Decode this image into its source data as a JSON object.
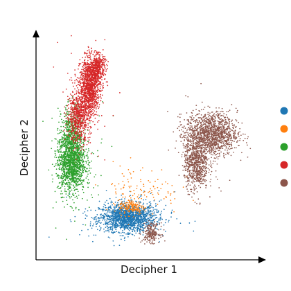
{
  "chart_data": {
    "type": "scatter",
    "title": "",
    "xlabel": "Decipher 1",
    "ylabel": "Decipher 2",
    "xlim": [
      0,
      100
    ],
    "ylim": [
      0,
      100
    ],
    "ticks": "none",
    "grid": false,
    "legend": {
      "placement": "right",
      "labels_visible": false
    },
    "series": [
      {
        "color": "#1f77b4",
        "clusters": [
          {
            "cx": 40,
            "cy": 18,
            "sx": 6.5,
            "sy": 3.2,
            "n": 1500
          },
          {
            "cx": 40,
            "cy": 18,
            "sx": 11,
            "sy": 6,
            "n": 140
          }
        ]
      },
      {
        "color": "#ff7f0e",
        "clusters": [
          {
            "cx": 42,
            "cy": 23,
            "sx": 3,
            "sy": 1.8,
            "n": 160
          },
          {
            "cx": 46,
            "cy": 31,
            "sx": 9,
            "sy": 6,
            "n": 120
          }
        ]
      },
      {
        "color": "#2ca02c",
        "clusters": [
          {
            "cx": 14,
            "cy": 44,
            "sx": 3.2,
            "sy": 7,
            "n": 1400
          },
          {
            "cx": 14,
            "cy": 58,
            "sx": 2.4,
            "sy": 6,
            "n": 350
          },
          {
            "cx": 16,
            "cy": 46,
            "sx": 7,
            "sy": 14,
            "n": 100
          }
        ]
      },
      {
        "color": "#d62728",
        "clusters": [
          {
            "cx": 17,
            "cy": 65,
            "sx": 2.6,
            "sy": 6,
            "n": 650
          },
          {
            "cx": 22.5,
            "cy": 79,
            "sx": 2.3,
            "sy": 6.5,
            "n": 1200
          },
          {
            "cx": 26,
            "cy": 88,
            "sx": 1.8,
            "sy": 3,
            "n": 400
          },
          {
            "cx": 20,
            "cy": 72,
            "sx": 6,
            "sy": 12,
            "n": 80
          }
        ]
      },
      {
        "color": "#8c564b",
        "clusters": [
          {
            "cx": 79,
            "cy": 57,
            "sx": 6,
            "sy": 5,
            "n": 1300
          },
          {
            "cx": 72,
            "cy": 43,
            "sx": 2.8,
            "sy": 6,
            "n": 700
          },
          {
            "cx": 77,
            "cy": 52,
            "sx": 7,
            "sy": 11,
            "n": 80
          },
          {
            "cx": 51,
            "cy": 11,
            "sx": 2,
            "sy": 2.2,
            "n": 220
          }
        ]
      }
    ]
  }
}
